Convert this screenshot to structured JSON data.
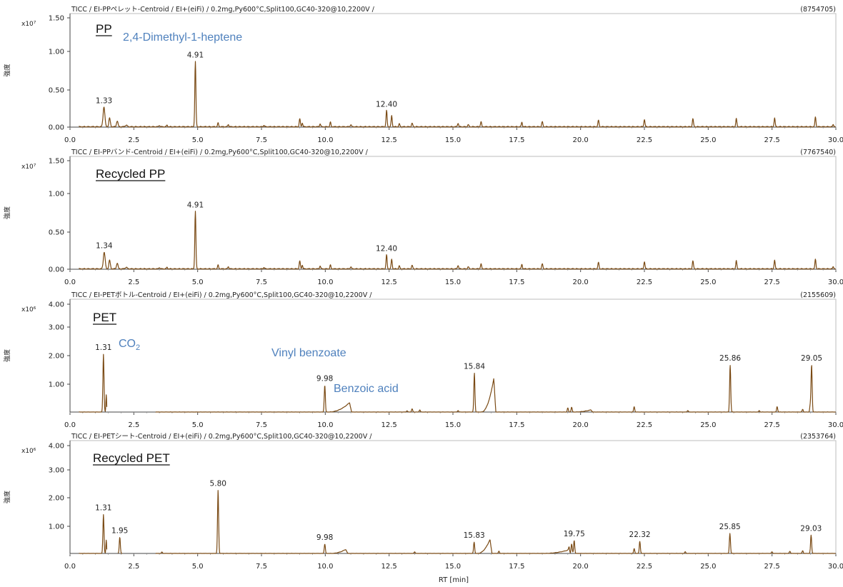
{
  "x_axis_label": "RT [min]",
  "colors": {
    "trace": "#7a4a14",
    "annotation": "#4f81bd",
    "axis": "#444444"
  },
  "chart_data": [
    {
      "type": "line",
      "header": "TICC / EI-PPペレット-Centroid / EI+(eiFi) / 0.2mg,Py600°C,Split100,GC40-320@10,2200V /",
      "total_intensity": "(8754705)",
      "title": "PP",
      "annotations": [
        {
          "text": "2,4-Dimethyl-1-heptene"
        }
      ],
      "y_unit": "x10⁷",
      "y_label": "強度",
      "xlim": [
        0,
        30
      ],
      "x_ticks": [
        "0.0",
        "2.5",
        "5.0",
        "7.5",
        "10.0",
        "12.5",
        "15.0",
        "17.5",
        "20.0",
        "22.5",
        "25.0",
        "27.5",
        "30.0"
      ],
      "ylim": [
        0,
        1.55
      ],
      "y_ticks": [
        "0.00",
        "0.50",
        "1.00",
        "1.50"
      ],
      "baseline": 0.005,
      "peaks": [
        {
          "x": 1.33,
          "y": 0.27,
          "w": 0.05
        },
        {
          "x": 1.55,
          "y": 0.12,
          "w": 0.04
        },
        {
          "x": 1.85,
          "y": 0.08,
          "w": 0.04
        },
        {
          "x": 2.2,
          "y": 0.02,
          "w": 0.06
        },
        {
          "x": 3.5,
          "y": 0.02,
          "w": 0.03
        },
        {
          "x": 3.8,
          "y": 0.02,
          "w": 0.03
        },
        {
          "x": 4.91,
          "y": 0.89,
          "w": 0.03
        },
        {
          "x": 5.8,
          "y": 0.05,
          "w": 0.03
        },
        {
          "x": 6.2,
          "y": 0.03,
          "w": 0.03
        },
        {
          "x": 7.6,
          "y": 0.02,
          "w": 0.03
        },
        {
          "x": 9.0,
          "y": 0.11,
          "w": 0.03
        },
        {
          "x": 9.1,
          "y": 0.05,
          "w": 0.03
        },
        {
          "x": 9.8,
          "y": 0.04,
          "w": 0.03
        },
        {
          "x": 10.2,
          "y": 0.06,
          "w": 0.03
        },
        {
          "x": 11.0,
          "y": 0.03,
          "w": 0.03
        },
        {
          "x": 12.4,
          "y": 0.22,
          "w": 0.03
        },
        {
          "x": 12.6,
          "y": 0.15,
          "w": 0.03
        },
        {
          "x": 12.9,
          "y": 0.04,
          "w": 0.03
        },
        {
          "x": 13.4,
          "y": 0.05,
          "w": 0.03
        },
        {
          "x": 15.2,
          "y": 0.05,
          "w": 0.03
        },
        {
          "x": 15.6,
          "y": 0.03,
          "w": 0.03
        },
        {
          "x": 16.1,
          "y": 0.07,
          "w": 0.03
        },
        {
          "x": 17.7,
          "y": 0.06,
          "w": 0.03
        },
        {
          "x": 18.5,
          "y": 0.07,
          "w": 0.03
        },
        {
          "x": 20.7,
          "y": 0.09,
          "w": 0.03
        },
        {
          "x": 22.5,
          "y": 0.1,
          "w": 0.03
        },
        {
          "x": 24.4,
          "y": 0.11,
          "w": 0.03
        },
        {
          "x": 26.1,
          "y": 0.11,
          "w": 0.03
        },
        {
          "x": 27.6,
          "y": 0.12,
          "w": 0.03
        },
        {
          "x": 29.2,
          "y": 0.13,
          "w": 0.03
        },
        {
          "x": 29.9,
          "y": 0.03,
          "w": 0.03
        }
      ],
      "humps": [],
      "peak_labels": [
        {
          "x": 1.33,
          "y": 0.27,
          "text": "1.33"
        },
        {
          "x": 4.91,
          "y": 0.89,
          "text": "4.91"
        },
        {
          "x": 12.4,
          "y": 0.22,
          "text": "12.40"
        }
      ]
    },
    {
      "type": "line",
      "header": "TICC / EI-PPバンド-Centroid / EI+(eiFi) / 0.2mg,Py600°C,Split100,GC40-320@10,2200V /",
      "total_intensity": "(7767540)",
      "title": "Recycled PP",
      "annotations": [],
      "y_unit": "x10⁷",
      "y_label": "強度",
      "xlim": [
        0,
        30
      ],
      "x_ticks": [
        "0.0",
        "2.5",
        "5.0",
        "7.5",
        "10.0",
        "12.5",
        "15.0",
        "17.5",
        "20.0",
        "22.5",
        "25.0",
        "27.5",
        "30.0"
      ],
      "ylim": [
        0,
        1.55
      ],
      "y_ticks": [
        "0.00",
        "0.50",
        "1.00",
        "1.50"
      ],
      "baseline": 0.005,
      "peaks": [
        {
          "x": 1.34,
          "y": 0.23,
          "w": 0.05
        },
        {
          "x": 1.55,
          "y": 0.12,
          "w": 0.04
        },
        {
          "x": 1.85,
          "y": 0.08,
          "w": 0.04
        },
        {
          "x": 2.2,
          "y": 0.02,
          "w": 0.06
        },
        {
          "x": 3.5,
          "y": 0.02,
          "w": 0.03
        },
        {
          "x": 3.8,
          "y": 0.02,
          "w": 0.03
        },
        {
          "x": 4.91,
          "y": 0.79,
          "w": 0.03
        },
        {
          "x": 5.8,
          "y": 0.05,
          "w": 0.03
        },
        {
          "x": 6.2,
          "y": 0.03,
          "w": 0.03
        },
        {
          "x": 7.6,
          "y": 0.02,
          "w": 0.03
        },
        {
          "x": 9.0,
          "y": 0.11,
          "w": 0.03
        },
        {
          "x": 9.1,
          "y": 0.05,
          "w": 0.03
        },
        {
          "x": 9.8,
          "y": 0.04,
          "w": 0.03
        },
        {
          "x": 10.2,
          "y": 0.05,
          "w": 0.03
        },
        {
          "x": 11.0,
          "y": 0.03,
          "w": 0.03
        },
        {
          "x": 12.4,
          "y": 0.19,
          "w": 0.03
        },
        {
          "x": 12.6,
          "y": 0.13,
          "w": 0.03
        },
        {
          "x": 12.9,
          "y": 0.04,
          "w": 0.03
        },
        {
          "x": 13.4,
          "y": 0.05,
          "w": 0.03
        },
        {
          "x": 15.2,
          "y": 0.05,
          "w": 0.03
        },
        {
          "x": 15.6,
          "y": 0.03,
          "w": 0.03
        },
        {
          "x": 16.1,
          "y": 0.07,
          "w": 0.03
        },
        {
          "x": 17.7,
          "y": 0.06,
          "w": 0.03
        },
        {
          "x": 18.5,
          "y": 0.07,
          "w": 0.03
        },
        {
          "x": 20.7,
          "y": 0.09,
          "w": 0.03
        },
        {
          "x": 22.5,
          "y": 0.1,
          "w": 0.03
        },
        {
          "x": 24.4,
          "y": 0.11,
          "w": 0.03
        },
        {
          "x": 26.1,
          "y": 0.11,
          "w": 0.03
        },
        {
          "x": 27.6,
          "y": 0.12,
          "w": 0.03
        },
        {
          "x": 29.2,
          "y": 0.13,
          "w": 0.03
        },
        {
          "x": 29.9,
          "y": 0.03,
          "w": 0.03
        }
      ],
      "humps": [],
      "peak_labels": [
        {
          "x": 1.34,
          "y": 0.23,
          "text": "1.34"
        },
        {
          "x": 4.91,
          "y": 0.79,
          "text": "4.91"
        },
        {
          "x": 12.4,
          "y": 0.19,
          "text": "12.40"
        }
      ]
    },
    {
      "type": "line",
      "header": "TICC / EI-PETボトル-Centroid / EI+(eiFi) / 0.2mg,Py600°C,Split100,GC40-320@10,2200V /",
      "total_intensity": "(2155609)",
      "title": "PET",
      "annotations": [
        {
          "text": "CO",
          "sub": "2"
        },
        {
          "text": "Vinyl benzoate"
        },
        {
          "text": "Benzoic acid"
        }
      ],
      "y_unit": "x10⁶",
      "y_label": "強度",
      "xlim": [
        0,
        30
      ],
      "x_ticks": [
        "0.0",
        "2.5",
        "5.0",
        "7.5",
        "10.0",
        "12.5",
        "15.0",
        "17.5",
        "20.0",
        "22.5",
        "25.0",
        "27.5",
        "30.0"
      ],
      "ylim": [
        0,
        4.2
      ],
      "y_ticks": [
        "1.00",
        "2.00",
        "3.00",
        "4.00"
      ],
      "baseline": 0.0,
      "gap": [
        1.45,
        3.35
      ],
      "peaks": [
        {
          "x": 1.31,
          "y": 2.15,
          "w": 0.03
        },
        {
          "x": 1.42,
          "y": 0.65,
          "w": 0.02
        },
        {
          "x": 9.98,
          "y": 1.0,
          "w": 0.03
        },
        {
          "x": 13.2,
          "y": 0.05,
          "w": 0.03
        },
        {
          "x": 13.4,
          "y": 0.12,
          "w": 0.03
        },
        {
          "x": 13.7,
          "y": 0.08,
          "w": 0.03
        },
        {
          "x": 15.2,
          "y": 0.06,
          "w": 0.03
        },
        {
          "x": 15.84,
          "y": 1.45,
          "w": 0.03
        },
        {
          "x": 19.5,
          "y": 0.15,
          "w": 0.03
        },
        {
          "x": 19.65,
          "y": 0.18,
          "w": 0.03
        },
        {
          "x": 22.1,
          "y": 0.2,
          "w": 0.03
        },
        {
          "x": 24.2,
          "y": 0.06,
          "w": 0.03
        },
        {
          "x": 25.86,
          "y": 1.75,
          "w": 0.03
        },
        {
          "x": 27.0,
          "y": 0.05,
          "w": 0.03
        },
        {
          "x": 27.7,
          "y": 0.2,
          "w": 0.03
        },
        {
          "x": 28.7,
          "y": 0.1,
          "w": 0.03
        },
        {
          "x": 29.0,
          "y": 0.28,
          "w": 0.03
        },
        {
          "x": 29.05,
          "y": 1.75,
          "w": 0.03
        }
      ],
      "humps": [
        {
          "x0": 10.1,
          "x1": 10.95,
          "y": 0.35
        },
        {
          "x0": 16.1,
          "x1": 16.6,
          "y": 1.25
        },
        {
          "x0": 19.7,
          "x1": 20.4,
          "y": 0.08
        }
      ],
      "peak_labels": [
        {
          "x": 1.31,
          "y": 2.15,
          "text": "1.31"
        },
        {
          "x": 9.98,
          "y": 1.0,
          "text": "9.98"
        },
        {
          "x": 15.84,
          "y": 1.45,
          "text": "15.84"
        },
        {
          "x": 25.86,
          "y": 1.75,
          "text": "25.86"
        },
        {
          "x": 29.05,
          "y": 1.75,
          "text": "29.05"
        }
      ]
    },
    {
      "type": "line",
      "header": "TICC / EI-PETシート-Centroid / EI+(eiFi) / 0.2mg,Py600°C,Split100,GC40-320@10,2200V /",
      "total_intensity": "(2353764)",
      "title": "Recycled PET",
      "annotations": [],
      "y_unit": "x10⁶",
      "y_label": "強度",
      "xlim": [
        0,
        30
      ],
      "x_ticks": [
        "0.0",
        "2.5",
        "5.0",
        "7.5",
        "10.0",
        "12.5",
        "15.0",
        "17.5",
        "20.0",
        "22.5",
        "25.0",
        "27.5",
        "30.0"
      ],
      "ylim": [
        0,
        4.2
      ],
      "y_ticks": [
        "1.00",
        "2.00",
        "3.00",
        "4.00"
      ],
      "baseline": 0.0,
      "gap": [
        1.45,
        1.88,
        2.05,
        3.35
      ],
      "peaks": [
        {
          "x": 1.31,
          "y": 1.45,
          "w": 0.03
        },
        {
          "x": 1.42,
          "y": 0.5,
          "w": 0.02
        },
        {
          "x": 1.95,
          "y": 0.6,
          "w": 0.03
        },
        {
          "x": 3.6,
          "y": 0.05,
          "w": 0.03
        },
        {
          "x": 5.8,
          "y": 2.35,
          "w": 0.03
        },
        {
          "x": 9.98,
          "y": 0.35,
          "w": 0.03
        },
        {
          "x": 13.5,
          "y": 0.06,
          "w": 0.03
        },
        {
          "x": 15.83,
          "y": 0.42,
          "w": 0.03
        },
        {
          "x": 16.8,
          "y": 0.08,
          "w": 0.03
        },
        {
          "x": 19.55,
          "y": 0.2,
          "w": 0.03
        },
        {
          "x": 19.65,
          "y": 0.35,
          "w": 0.03
        },
        {
          "x": 19.75,
          "y": 0.48,
          "w": 0.03
        },
        {
          "x": 22.1,
          "y": 0.18,
          "w": 0.03
        },
        {
          "x": 22.32,
          "y": 0.45,
          "w": 0.03
        },
        {
          "x": 24.1,
          "y": 0.06,
          "w": 0.03
        },
        {
          "x": 25.85,
          "y": 0.75,
          "w": 0.03
        },
        {
          "x": 27.5,
          "y": 0.06,
          "w": 0.03
        },
        {
          "x": 28.2,
          "y": 0.08,
          "w": 0.03
        },
        {
          "x": 28.7,
          "y": 0.1,
          "w": 0.03
        },
        {
          "x": 29.03,
          "y": 0.68,
          "w": 0.03
        }
      ],
      "humps": [
        {
          "x0": 10.2,
          "x1": 10.8,
          "y": 0.15
        },
        {
          "x0": 15.95,
          "x1": 16.45,
          "y": 0.52
        },
        {
          "x0": 18.5,
          "x1": 19.5,
          "y": 0.12
        }
      ],
      "peak_labels": [
        {
          "x": 1.31,
          "y": 1.45,
          "text": "1.31"
        },
        {
          "x": 1.95,
          "y": 0.6,
          "text": "1.95"
        },
        {
          "x": 5.8,
          "y": 2.35,
          "text": "5.80"
        },
        {
          "x": 9.98,
          "y": 0.35,
          "text": "9.98"
        },
        {
          "x": 15.83,
          "y": 0.42,
          "text": "15.83"
        },
        {
          "x": 19.75,
          "y": 0.48,
          "text": "19.75"
        },
        {
          "x": 22.32,
          "y": 0.45,
          "text": "22.32"
        },
        {
          "x": 25.85,
          "y": 0.75,
          "text": "25.85"
        },
        {
          "x": 29.03,
          "y": 0.68,
          "text": "29.03"
        }
      ]
    }
  ]
}
